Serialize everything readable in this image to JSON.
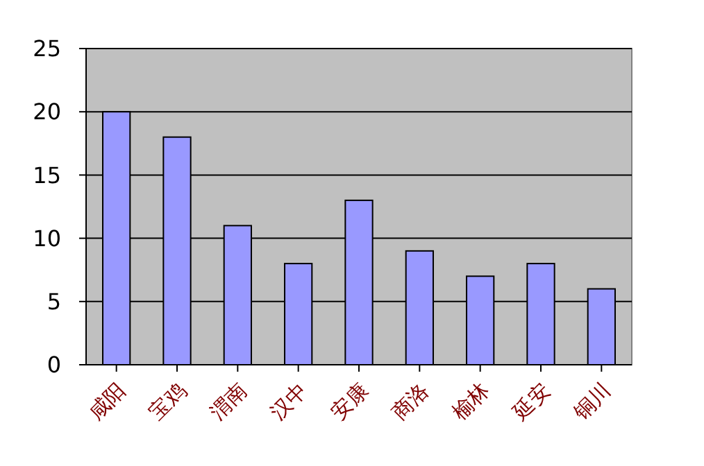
{
  "chart_data": {
    "type": "bar",
    "categories": [
      "咸阳",
      "宝鸡",
      "渭南",
      "汉中",
      "安康",
      "商洛",
      "榆林",
      "延安",
      "铜川"
    ],
    "values": [
      20,
      18,
      11,
      8,
      13,
      9,
      7,
      8,
      6
    ],
    "color": "#9999ff",
    "ylim": [
      0,
      25
    ],
    "yticks": [
      0,
      5,
      10,
      15,
      20,
      25
    ],
    "grid": "y"
  }
}
